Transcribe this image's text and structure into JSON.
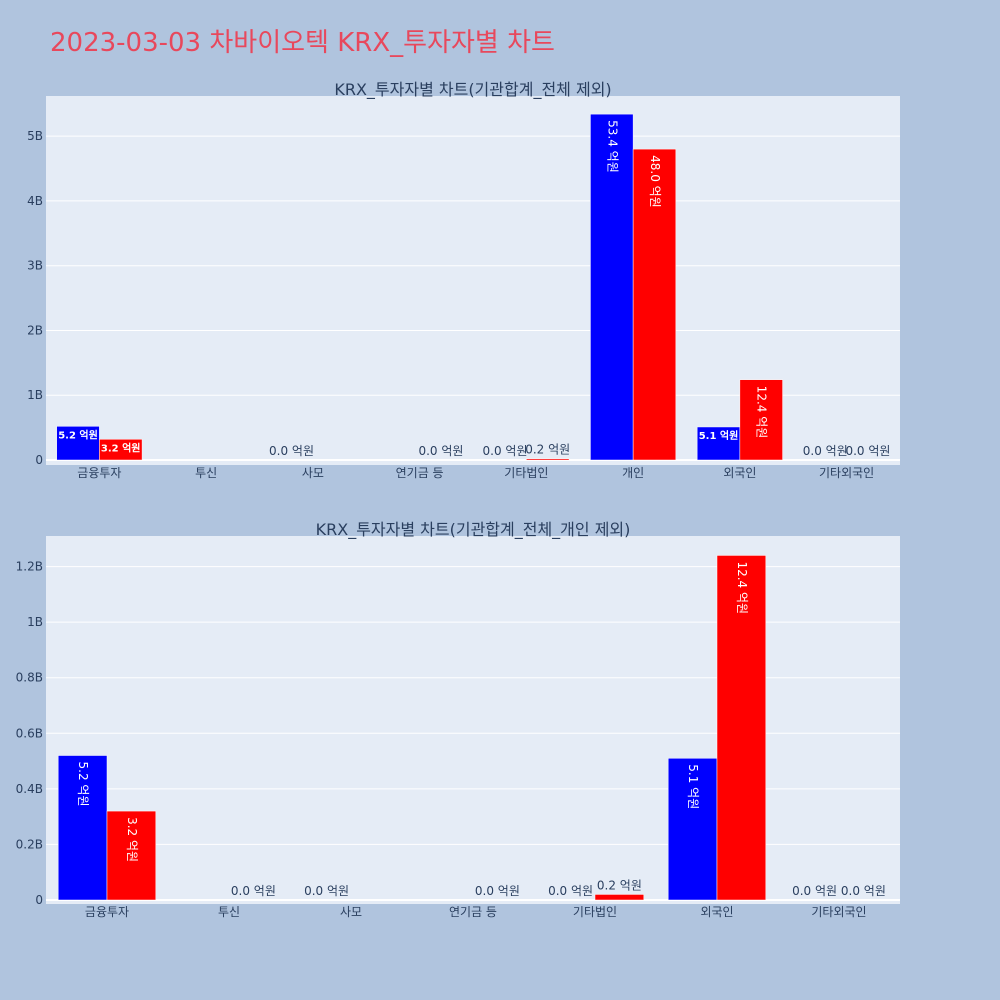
{
  "page": {
    "title": "2023-03-03 차바이오텍 KRX_투자자별 차트"
  },
  "colors": {
    "page_bg": "#b0c4de",
    "plot_bg": "#e5ecf6",
    "title": "#e8485c",
    "series_a": "#0000ff",
    "series_b": "#ff0000",
    "text": "#2a3f5f"
  },
  "chart_data": [
    {
      "type": "bar",
      "title": "KRX_투자자별 차트(기관합계_전체 제외)",
      "categories": [
        "금융투자",
        "투신",
        "사모",
        "연기금 등",
        "기타법인",
        "개인",
        "외국인",
        "기타외국인"
      ],
      "series": [
        {
          "color": "#0000ff",
          "values": [
            520000000,
            0,
            0,
            0,
            0,
            5340000000,
            510000000,
            0
          ],
          "labels": [
            "5.2 억원",
            "",
            "0.0 억원",
            "",
            "0.0 억원",
            "53.4 억원",
            "5.1 억원",
            "0.0 억원"
          ]
        },
        {
          "color": "#ff0000",
          "values": [
            320000000,
            0,
            0,
            0,
            20000000,
            4800000000,
            1240000000,
            0
          ],
          "labels": [
            "3.2 억원",
            "",
            "",
            "0.0 억원",
            "0.2 억원",
            "48.0 억원",
            "12.4 억원",
            "0.0 억원"
          ]
        }
      ],
      "yticks": [
        0,
        1000000000,
        2000000000,
        3000000000,
        4000000000,
        5000000000
      ],
      "ytick_labels": [
        "0",
        "1B",
        "2B",
        "3B",
        "4B",
        "5B"
      ],
      "ylim": [
        0,
        5620000000
      ],
      "grid": true,
      "legend": "none"
    },
    {
      "type": "bar",
      "title": "KRX_투자자별 차트(기관합계_전체_개인 제외)",
      "categories": [
        "금융투자",
        "투신",
        "사모",
        "연기금 등",
        "기타법인",
        "외국인",
        "기타외국인"
      ],
      "series": [
        {
          "color": "#0000ff",
          "values": [
            520000000,
            0,
            0,
            0,
            0,
            510000000,
            0
          ],
          "labels": [
            "5.2 억원",
            "",
            "0.0 억원",
            "",
            "0.0 억원",
            "5.1 억원",
            "0.0 억원"
          ]
        },
        {
          "color": "#ff0000",
          "values": [
            320000000,
            0,
            0,
            0,
            20000000,
            1240000000,
            0
          ],
          "labels": [
            "3.2 억원",
            "0.0 억원",
            "",
            "0.0 억원",
            "0.2 억원",
            "12.4 억원",
            "0.0 억원"
          ]
        }
      ],
      "yticks": [
        0,
        200000000,
        400000000,
        600000000,
        800000000,
        1000000000,
        1200000000
      ],
      "ytick_labels": [
        "0",
        "0.2B",
        "0.4B",
        "0.6B",
        "0.8B",
        "1B",
        "1.2B"
      ],
      "ylim": [
        0,
        1310000000
      ],
      "grid": true,
      "legend": "none"
    }
  ]
}
